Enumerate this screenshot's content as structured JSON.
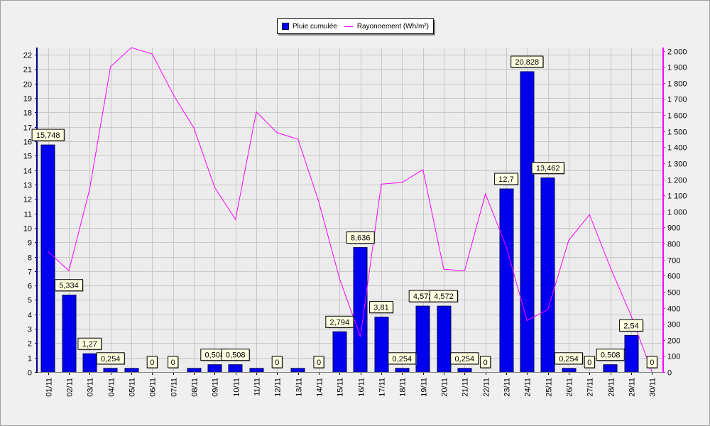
{
  "chart_data": {
    "type": "bar",
    "categories": [
      "01/11",
      "02/11",
      "03/11",
      "04/11",
      "05/11",
      "06/11",
      "07/11",
      "08/11",
      "09/11",
      "10/11",
      "11/11",
      "12/11",
      "13/11",
      "14/11",
      "15/11",
      "16/11",
      "17/11",
      "18/11",
      "19/11",
      "20/11",
      "21/11",
      "22/11",
      "23/11",
      "24/11",
      "25/11",
      "26/11",
      "27/11",
      "28/11",
      "29/11",
      "30/11"
    ],
    "series": [
      {
        "name": "Pluie cumulée",
        "type": "bar",
        "axis": "left",
        "color": "#0000ee",
        "values": [
          15.748,
          5.334,
          1.27,
          0.254,
          0.254,
          0,
          0,
          0.254,
          0.508,
          0.508,
          0.254,
          0,
          0.254,
          0,
          2.794,
          8.636,
          3.81,
          0.254,
          4.572,
          4.572,
          0.254,
          0,
          12.7,
          20.828,
          13.462,
          0.254,
          0,
          0.508,
          2.54,
          0
        ]
      },
      {
        "name": "Rayonnement (Wh/m²)",
        "type": "line",
        "axis": "right",
        "color": "#ff00ff",
        "values": [
          750,
          630,
          1140,
          1900,
          2020,
          1980,
          1730,
          1520,
          1150,
          950,
          1620,
          1490,
          1450,
          1060,
          580,
          220,
          1170,
          1180,
          1260,
          640,
          630,
          1110,
          780,
          320,
          390,
          820,
          980,
          650,
          350,
          0
        ]
      }
    ],
    "data_labels": [
      {
        "i": 0,
        "text": "15,748"
      },
      {
        "i": 1,
        "text": "5,334"
      },
      {
        "i": 2,
        "text": "1,27"
      },
      {
        "i": 3,
        "text": "0,254"
      },
      {
        "i": 5,
        "text": "0"
      },
      {
        "i": 6,
        "text": "0"
      },
      {
        "i": 8,
        "text": "0,508"
      },
      {
        "i": 9,
        "text": "0,508"
      },
      {
        "i": 11,
        "text": "0"
      },
      {
        "i": 13,
        "text": "0"
      },
      {
        "i": 14,
        "text": "2,794"
      },
      {
        "i": 15,
        "text": "8,636"
      },
      {
        "i": 16,
        "text": "3,81"
      },
      {
        "i": 17,
        "text": "0,254"
      },
      {
        "i": 18,
        "text": "4,572"
      },
      {
        "i": 19,
        "text": "4,572"
      },
      {
        "i": 20,
        "text": "0,254"
      },
      {
        "i": 21,
        "text": "0"
      },
      {
        "i": 22,
        "text": "12,7"
      },
      {
        "i": 23,
        "text": "20,828"
      },
      {
        "i": 24,
        "text": "13,462"
      },
      {
        "i": 25,
        "text": "0,254"
      },
      {
        "i": 26,
        "text": "0"
      },
      {
        "i": 27,
        "text": "0,508"
      },
      {
        "i": 28,
        "text": "2,54"
      },
      {
        "i": 29,
        "text": "0"
      }
    ],
    "left_axis": {
      "ylim": [
        0,
        22.5
      ],
      "ticks": [
        "0",
        "1",
        "2",
        "3",
        "4",
        "5",
        "6",
        "7",
        "8",
        "9",
        "10",
        "11",
        "12",
        "13",
        "14",
        "15",
        "16",
        "17",
        "18",
        "19",
        "20",
        "21",
        "22"
      ]
    },
    "right_axis": {
      "ylim": [
        0,
        2020
      ],
      "ticks": [
        "0",
        "100",
        "200",
        "300",
        "400",
        "500",
        "600",
        "700",
        "800",
        "900",
        "1 000",
        "1 100",
        "1 200",
        "1 300",
        "1 400",
        "1 500",
        "1 600",
        "1 700",
        "1 800",
        "1 900",
        "2 000"
      ]
    },
    "grid": true,
    "legend_position": "top-center",
    "title": "",
    "xlabel": "",
    "ylabel": ""
  },
  "colors": {
    "background": "#f0f0f0",
    "grid": "#c8c8c8",
    "left_axis": "#000080",
    "right_axis": "#ff00ff"
  }
}
